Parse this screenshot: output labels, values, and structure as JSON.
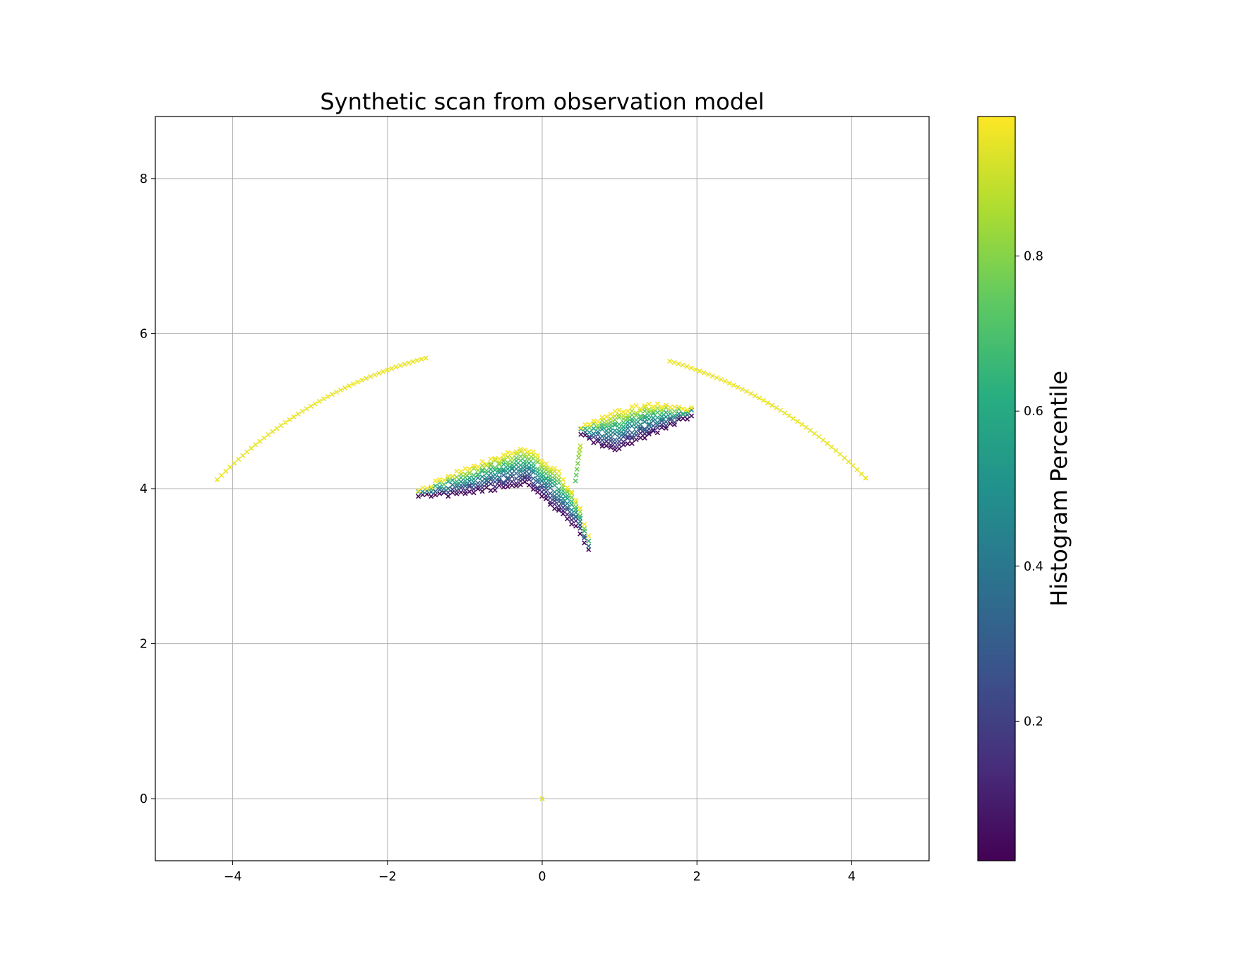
{
  "chart_data": {
    "type": "scatter",
    "title": "Synthetic scan from observation model",
    "xlabel": "",
    "ylabel": "",
    "xlim": [
      -5,
      5
    ],
    "ylim": [
      -0.8,
      8.8
    ],
    "x_ticks": [
      -4,
      -2,
      0,
      2,
      4
    ],
    "x_tick_labels": [
      "−4",
      "−2",
      "0",
      "2",
      "4"
    ],
    "y_ticks": [
      0,
      2,
      4,
      6,
      8
    ],
    "y_tick_labels": [
      "0",
      "2",
      "4",
      "6",
      "8"
    ],
    "grid": true,
    "marker": "x",
    "colormap": "viridis",
    "colorbar": {
      "label": "Histogram Percentile",
      "range": [
        0.02,
        0.98
      ],
      "ticks": [
        0.2,
        0.4,
        0.6,
        0.8
      ],
      "tick_labels": [
        "0.2",
        "0.4",
        "0.6",
        "0.8"
      ]
    },
    "regions": [
      {
        "kind": "arc",
        "center": [
          0,
          0
        ],
        "radius": 5.88,
        "x_range": [
          -4.2,
          -1.5
        ],
        "value": 0.95
      },
      {
        "kind": "arc",
        "center": [
          0,
          0
        ],
        "radius": 5.88,
        "x_range": [
          1.65,
          4.2
        ],
        "value": 0.95
      },
      {
        "kind": "band",
        "name": "left-wall",
        "inner": [
          [
            -1.6,
            3.9
          ],
          [
            -1.0,
            3.95
          ],
          [
            -0.2,
            4.07
          ],
          [
            0.45,
            3.5
          ],
          [
            0.62,
            3.18
          ]
        ],
        "outer": [
          [
            -1.6,
            3.97
          ],
          [
            -1.0,
            4.25
          ],
          [
            -0.2,
            4.52
          ],
          [
            0.2,
            4.22
          ],
          [
            0.45,
            3.85
          ],
          [
            0.62,
            3.3
          ]
        ],
        "value_inner": 0.03,
        "value_outer": 0.97
      },
      {
        "kind": "band",
        "name": "right-wall",
        "inner": [
          [
            0.5,
            4.7
          ],
          [
            0.9,
            4.5
          ],
          [
            1.4,
            4.7
          ],
          [
            1.95,
            4.95
          ]
        ],
        "outer": [
          [
            0.5,
            4.78
          ],
          [
            0.9,
            4.97
          ],
          [
            1.4,
            5.08
          ],
          [
            1.95,
            5.03
          ]
        ],
        "value_inner": 0.03,
        "value_outer": 0.97
      },
      {
        "kind": "strand",
        "points": [
          [
            0.43,
            4.1
          ],
          [
            0.47,
            4.4
          ],
          [
            0.5,
            4.6
          ]
        ],
        "value_start": 0.72,
        "value_end": 0.9
      }
    ],
    "points": [
      {
        "x": 0,
        "y": 0,
        "value": 0.95
      }
    ]
  }
}
